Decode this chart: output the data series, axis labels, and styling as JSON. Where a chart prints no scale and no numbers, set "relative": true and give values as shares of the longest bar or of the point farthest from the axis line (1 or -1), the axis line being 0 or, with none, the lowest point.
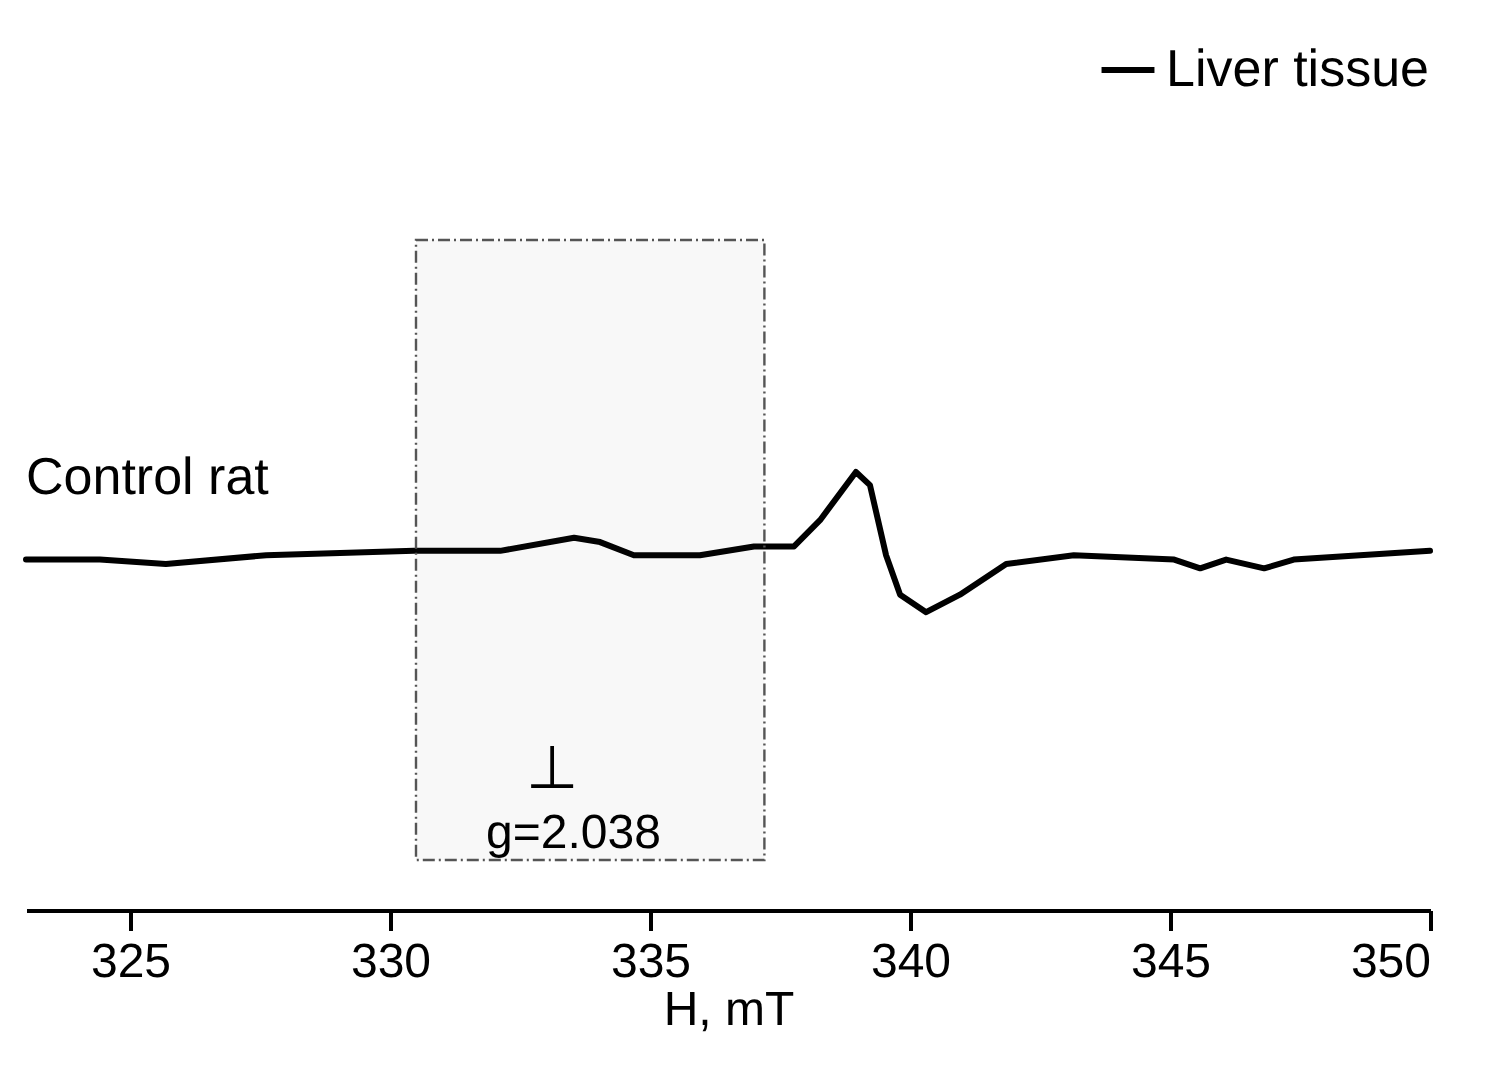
{
  "chart_data": {
    "type": "line",
    "relative": true,
    "xlabel": "H, mT",
    "xlim": [
      323,
      350
    ],
    "xticks": [
      325,
      330,
      335,
      340,
      345,
      350
    ],
    "series": [
      {
        "name": "Liver tissue",
        "color": "#000000",
        "x": [
          323.0,
          324.42,
          325.69,
          327.62,
          330.46,
          332.12,
          333.54,
          334.04,
          334.69,
          335.96,
          337.0,
          337.77,
          338.27,
          338.96,
          339.23,
          339.54,
          339.81,
          340.31,
          340.96,
          341.85,
          343.15,
          345.08,
          345.58,
          346.08,
          346.81,
          347.38,
          350.0
        ],
        "values": [
          0.8,
          0.8,
          0.79,
          0.81,
          0.82,
          0.82,
          0.85,
          0.84,
          0.81,
          0.81,
          0.83,
          0.83,
          0.89,
          1,
          0.97,
          0.81,
          0.72,
          0.68,
          0.72,
          0.79,
          0.81,
          0.8,
          0.78,
          0.8,
          0.78,
          0.8,
          0.82
        ]
      }
    ],
    "bands": [
      {
        "axis": "x",
        "from": 330.5,
        "to": 337.2,
        "color": "#555555"
      }
    ],
    "annotations": [
      "Control rat",
      "g=2.038",
      "⊥"
    ],
    "legend": "top right",
    "line_style": "solid",
    "marker": "none"
  }
}
